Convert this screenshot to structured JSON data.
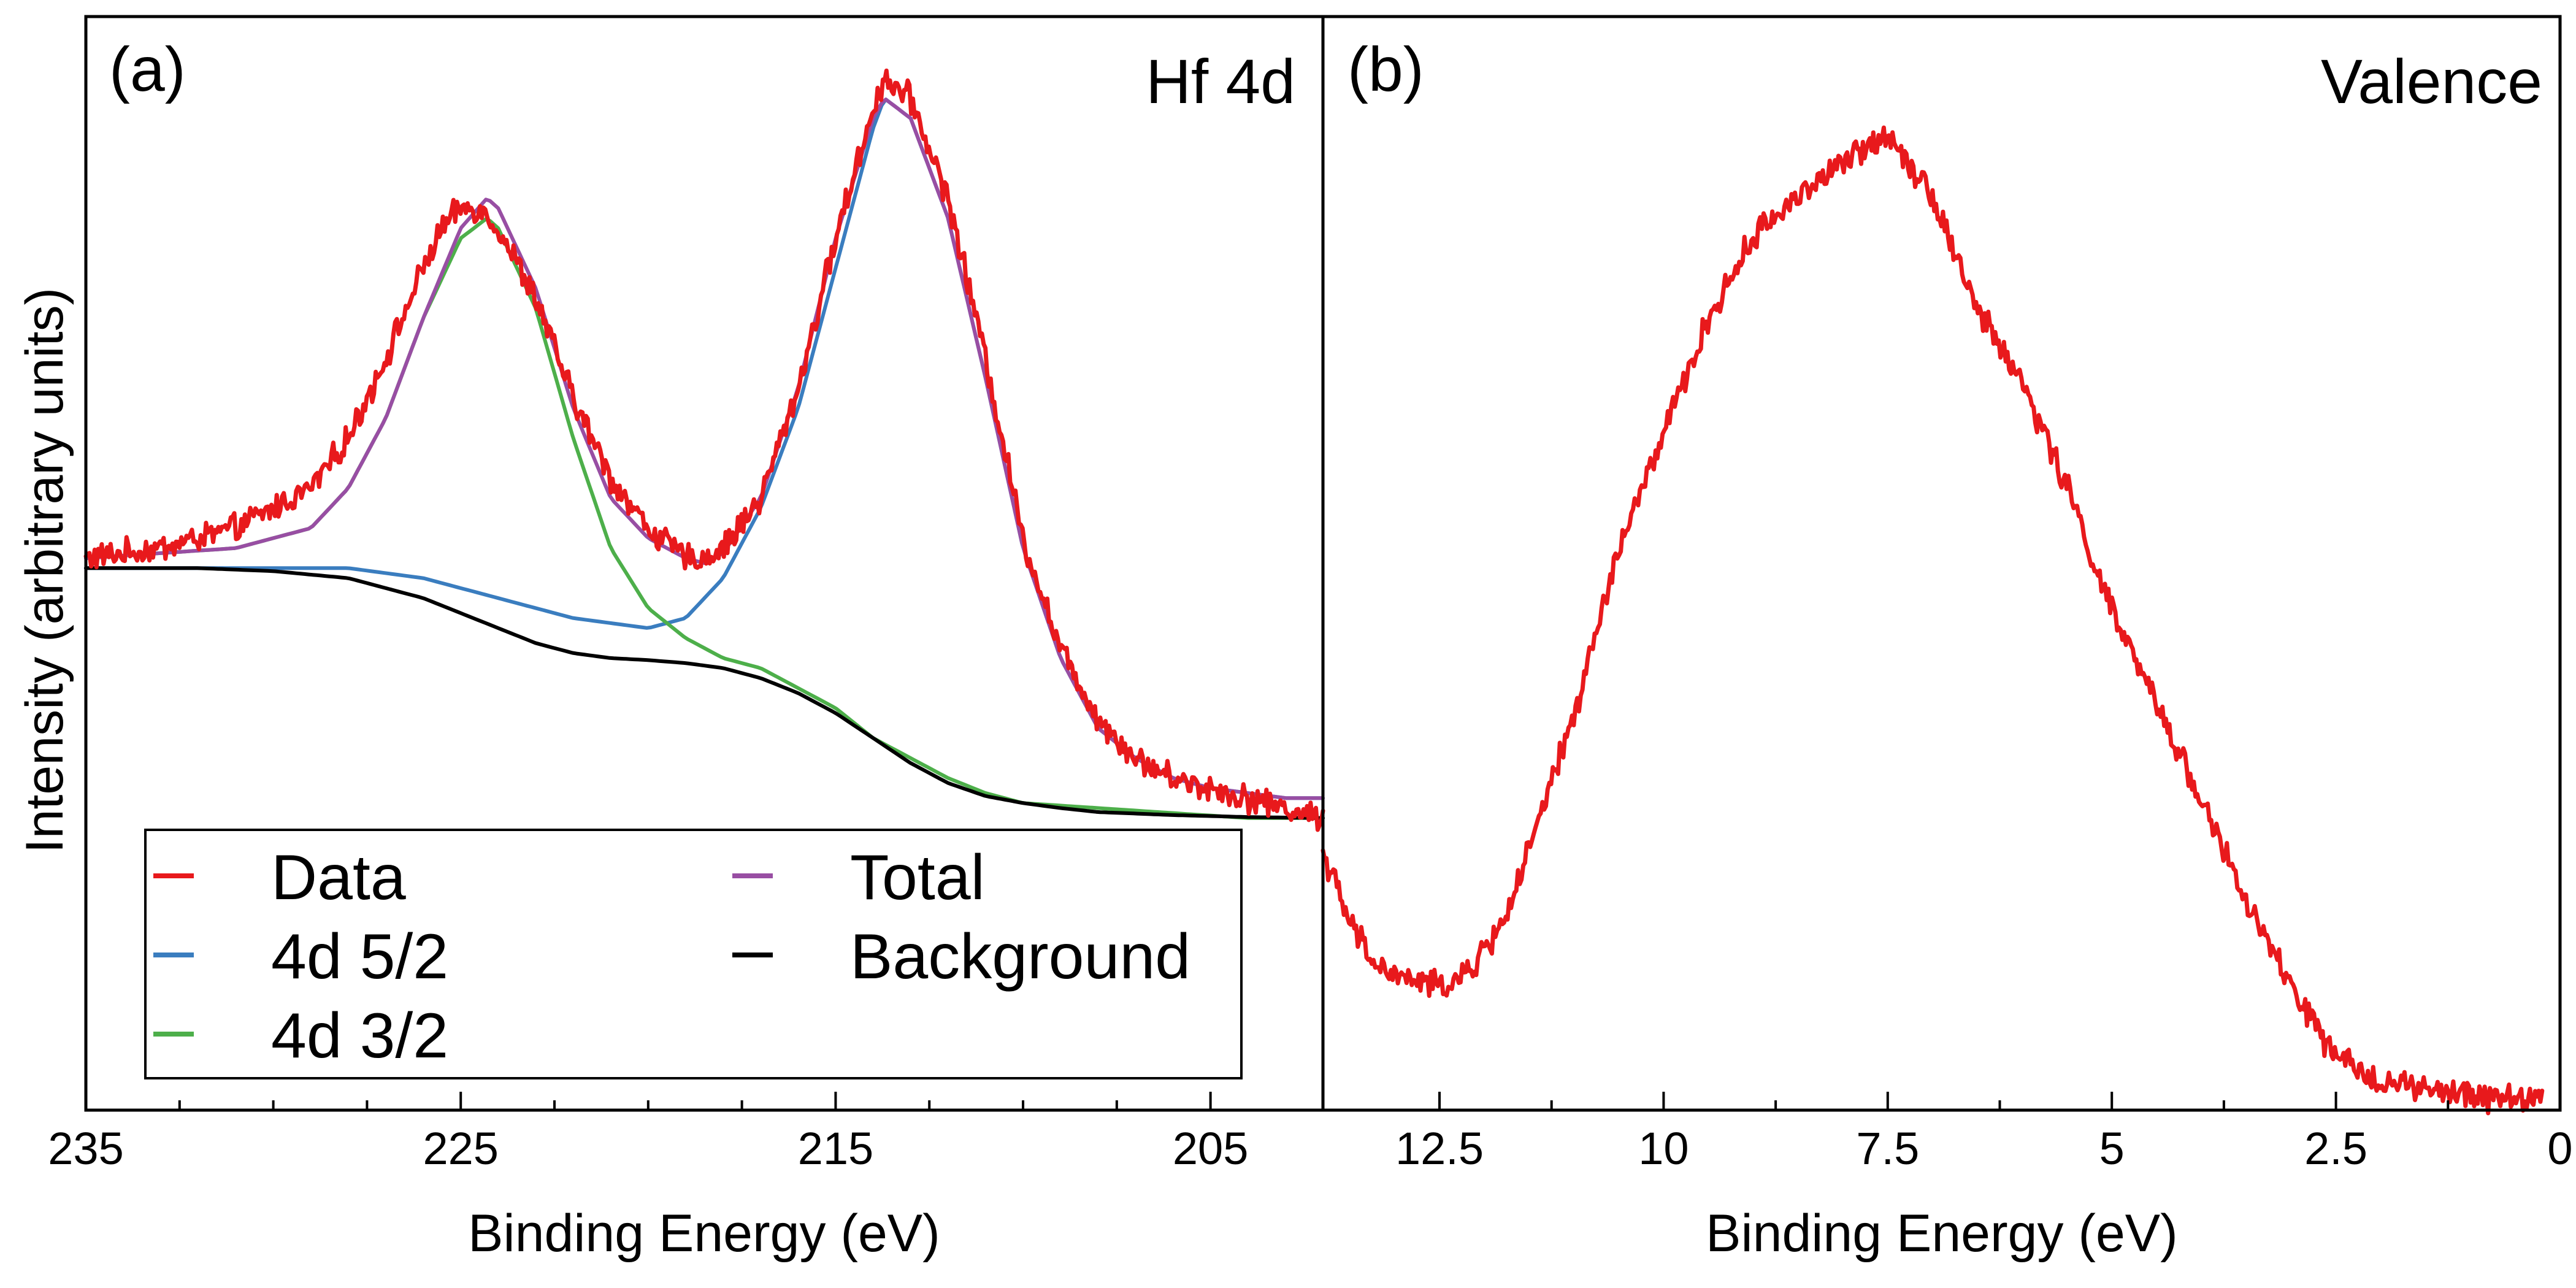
{
  "chart_data": [
    {
      "type": "line",
      "panel_label": "(a)",
      "title": "Hf 4d",
      "xlabel": "Binding Energy (eV)",
      "ylabel": "Intensity (arbitrary units)",
      "xlim": [
        235,
        202
      ],
      "x_reversed": true,
      "ylim": [
        0,
        1
      ],
      "y_ticks_shown": false,
      "xticks": [
        235,
        225,
        215,
        205
      ],
      "xtick_labels": [
        "235",
        "225",
        "215",
        "205"
      ],
      "x_minor_ticks": [
        232.5,
        230,
        227.5,
        222.5,
        220,
        217.5,
        212.5,
        210,
        207.5
      ],
      "legend": {
        "position": "lower-left",
        "columns": 2,
        "entries": [
          {
            "label": "Data",
            "color": "#e8191c"
          },
          {
            "label": "4d 5/2",
            "color": "#3a7dbf"
          },
          {
            "label": "4d 3/2",
            "color": "#4daf4a"
          },
          {
            "label": "Total",
            "color": "#984ea3"
          },
          {
            "label": "Background",
            "color": "#000000"
          }
        ]
      },
      "series": [
        {
          "name": "Data",
          "color": "#e8191c",
          "noisy": true,
          "x": [
            235,
            233,
            231,
            229,
            228,
            227,
            226,
            225.5,
            225,
            224.5,
            224,
            223,
            222,
            221,
            220,
            219,
            218.5,
            218,
            217,
            216,
            215,
            214,
            213.7,
            213,
            212,
            211,
            210,
            209,
            208,
            207,
            206,
            205,
            204,
            203,
            202
          ],
          "y": [
            0.5,
            0.51,
            0.53,
            0.57,
            0.62,
            0.7,
            0.79,
            0.83,
            0.85,
            0.85,
            0.83,
            0.76,
            0.66,
            0.58,
            0.53,
            0.5,
            0.5,
            0.51,
            0.56,
            0.67,
            0.82,
            0.95,
            0.98,
            0.96,
            0.86,
            0.7,
            0.52,
            0.41,
            0.34,
            0.3,
            0.28,
            0.27,
            0.26,
            0.25,
            0.24
          ]
        },
        {
          "name": "4d 5/2",
          "color": "#3a7dbf",
          "x": [
            235,
            230,
            228,
            226,
            224,
            222,
            220,
            219,
            218,
            217,
            216,
            215,
            214,
            213.7,
            213,
            212,
            211,
            210,
            209,
            208,
            207,
            206,
            205,
            204,
            203,
            202
          ],
          "y": [
            0.49,
            0.49,
            0.49,
            0.48,
            0.46,
            0.44,
            0.43,
            0.44,
            0.48,
            0.55,
            0.65,
            0.79,
            0.93,
            0.96,
            0.94,
            0.84,
            0.68,
            0.51,
            0.4,
            0.33,
            0.3,
            0.28,
            0.27,
            0.265,
            0.26,
            0.26
          ]
        },
        {
          "name": "4d 3/2",
          "color": "#4daf4a",
          "x": [
            235,
            231,
            229,
            228,
            227,
            226,
            225,
            224.3,
            224,
            223,
            222,
            221,
            220,
            219,
            218,
            217,
            216,
            215,
            214,
            213,
            212,
            211,
            210,
            208,
            206,
            204,
            202
          ],
          "y": [
            0.5,
            0.51,
            0.53,
            0.57,
            0.64,
            0.74,
            0.82,
            0.84,
            0.83,
            0.75,
            0.62,
            0.51,
            0.45,
            0.42,
            0.4,
            0.39,
            0.37,
            0.35,
            0.32,
            0.3,
            0.28,
            0.265,
            0.255,
            0.25,
            0.245,
            0.24,
            0.24
          ]
        },
        {
          "name": "Total",
          "color": "#984ea3",
          "x": [
            235,
            231,
            229,
            228,
            227,
            226,
            225,
            224.3,
            224,
            223,
            222,
            221,
            220,
            219,
            218.5,
            218,
            217,
            216,
            215,
            214,
            213.7,
            213,
            212,
            211,
            210,
            209,
            208,
            207,
            206,
            205,
            204,
            203,
            202
          ],
          "y": [
            0.5,
            0.51,
            0.53,
            0.57,
            0.64,
            0.74,
            0.83,
            0.86,
            0.85,
            0.77,
            0.65,
            0.56,
            0.52,
            0.5,
            0.495,
            0.505,
            0.56,
            0.67,
            0.82,
            0.94,
            0.96,
            0.94,
            0.84,
            0.68,
            0.51,
            0.4,
            0.33,
            0.3,
            0.28,
            0.27,
            0.265,
            0.26,
            0.26
          ]
        },
        {
          "name": "Background",
          "color": "#000000",
          "x": [
            235,
            232,
            230,
            228,
            226,
            225,
            224,
            223,
            222,
            221,
            220,
            219,
            218,
            217,
            216,
            215,
            214,
            213,
            212,
            211,
            210,
            209,
            208,
            206,
            204,
            202
          ],
          "y": [
            0.49,
            0.49,
            0.487,
            0.48,
            0.46,
            0.445,
            0.43,
            0.415,
            0.405,
            0.4,
            0.398,
            0.395,
            0.39,
            0.38,
            0.365,
            0.345,
            0.32,
            0.295,
            0.275,
            0.262,
            0.255,
            0.25,
            0.246,
            0.243,
            0.241,
            0.24
          ]
        }
      ]
    },
    {
      "type": "line",
      "panel_label": "(b)",
      "title": "Valence",
      "xlabel": "Binding Energy (eV)",
      "ylabel": "",
      "xlim": [
        13.8,
        0
      ],
      "x_reversed": true,
      "ylim": [
        0,
        1
      ],
      "y_ticks_shown": false,
      "xticks": [
        12.5,
        10,
        7.5,
        5,
        2.5,
        0
      ],
      "xtick_labels": [
        "12.5",
        "10",
        "7.5",
        "5",
        "2.5",
        "0"
      ],
      "x_minor_ticks": [
        11.25,
        8.75,
        6.25,
        3.75,
        1.25
      ],
      "series": [
        {
          "name": "Data",
          "color": "#e8191c",
          "noisy": true,
          "x": [
            13.8,
            13.5,
            13.2,
            13.0,
            12.5,
            12.2,
            11.8,
            11.5,
            11.0,
            10.5,
            10.0,
            9.5,
            9.0,
            8.5,
            8.0,
            7.5,
            7.0,
            6.5,
            6.0,
            5.5,
            5.0,
            4.5,
            4.0,
            3.5,
            3.0,
            2.5,
            2.0,
            1.5,
            1.0,
            0.5,
            0.2
          ],
          "y": [
            0.25,
            0.18,
            0.14,
            0.13,
            0.12,
            0.13,
            0.18,
            0.25,
            0.38,
            0.54,
            0.65,
            0.76,
            0.84,
            0.88,
            0.91,
            0.94,
            0.88,
            0.77,
            0.7,
            0.6,
            0.48,
            0.39,
            0.3,
            0.2,
            0.12,
            0.05,
            0.03,
            0.02,
            0.015,
            0.012,
            0.015
          ]
        }
      ]
    }
  ]
}
